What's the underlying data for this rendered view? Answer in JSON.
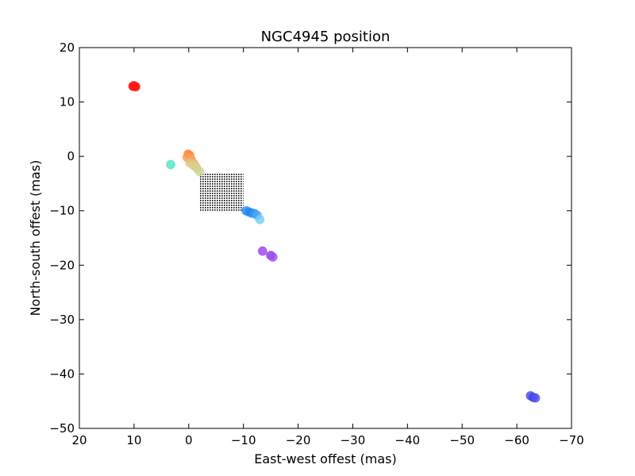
{
  "chart_data": {
    "type": "scatter",
    "title": "NGC4945 position",
    "xlabel": "East-west offest (mas)",
    "ylabel": "North-south offest (mas)",
    "xlim": [
      20,
      -70
    ],
    "ylim": [
      -50,
      20
    ],
    "x_inverted": true,
    "grid": false,
    "x_ticks": [
      20,
      10,
      0,
      -10,
      -20,
      -30,
      -40,
      -50,
      -60,
      -70
    ],
    "x_tick_labels": [
      "20",
      "10",
      "0",
      "−10",
      "−20",
      "−30",
      "−40",
      "−50",
      "−60",
      "−70"
    ],
    "y_ticks": [
      20,
      10,
      0,
      -10,
      -20,
      -30,
      -40,
      -50
    ],
    "y_tick_labels": [
      "20",
      "10",
      "0",
      "−10",
      "−20",
      "−30",
      "−40",
      "−50"
    ],
    "points": [
      {
        "x": 10.2,
        "y": 12.9,
        "color": "#ff0000"
      },
      {
        "x": 9.7,
        "y": 12.8,
        "color": "#ff0000"
      },
      {
        "x": 10.0,
        "y": 13.0,
        "color": "#ff1a0d"
      },
      {
        "x": 0.1,
        "y": 0.4,
        "color": "#ff7a3d"
      },
      {
        "x": -0.2,
        "y": 0.2,
        "color": "#ff8a45"
      },
      {
        "x": 0.3,
        "y": -0.2,
        "color": "#ff9a50"
      },
      {
        "x": -0.4,
        "y": -0.5,
        "color": "#f4a35b"
      },
      {
        "x": -0.6,
        "y": -1.0,
        "color": "#ffa060"
      },
      {
        "x": -1.0,
        "y": -1.4,
        "color": "#f2b46c"
      },
      {
        "x": -1.3,
        "y": -1.9,
        "color": "#eec07a"
      },
      {
        "x": -0.2,
        "y": -1.2,
        "color": "#e0c57e"
      },
      {
        "x": -0.8,
        "y": -1.6,
        "color": "#d8d088"
      },
      {
        "x": -1.5,
        "y": -2.2,
        "color": "#d2d58e"
      },
      {
        "x": -2.0,
        "y": -2.8,
        "color": "#cdd393"
      },
      {
        "x": 3.3,
        "y": -1.5,
        "color": "#4ee3c4"
      },
      {
        "x": -10.5,
        "y": -10.0,
        "color": "#1e90ff"
      },
      {
        "x": -11.0,
        "y": -10.2,
        "color": "#2a86f5"
      },
      {
        "x": -11.5,
        "y": -10.4,
        "color": "#1e8cf0"
      },
      {
        "x": -12.0,
        "y": -10.5,
        "color": "#2d9af5"
      },
      {
        "x": -12.5,
        "y": -10.8,
        "color": "#46aaf5"
      },
      {
        "x": -13.0,
        "y": -11.6,
        "color": "#74cdf2"
      },
      {
        "x": -13.5,
        "y": -17.4,
        "color": "#9b3cf0"
      },
      {
        "x": -15.0,
        "y": -18.2,
        "color": "#8c32e6"
      },
      {
        "x": -15.4,
        "y": -18.5,
        "color": "#a050f0"
      },
      {
        "x": -62.5,
        "y": -44.0,
        "color": "#4646f0"
      },
      {
        "x": -63.0,
        "y": -44.3,
        "color": "#3c3ce6"
      },
      {
        "x": -63.4,
        "y": -44.4,
        "color": "#5050f5"
      }
    ],
    "hatched_box": {
      "x_range": [
        -2,
        -10
      ],
      "y_range": [
        -3,
        -10
      ],
      "color": "#000000"
    }
  }
}
